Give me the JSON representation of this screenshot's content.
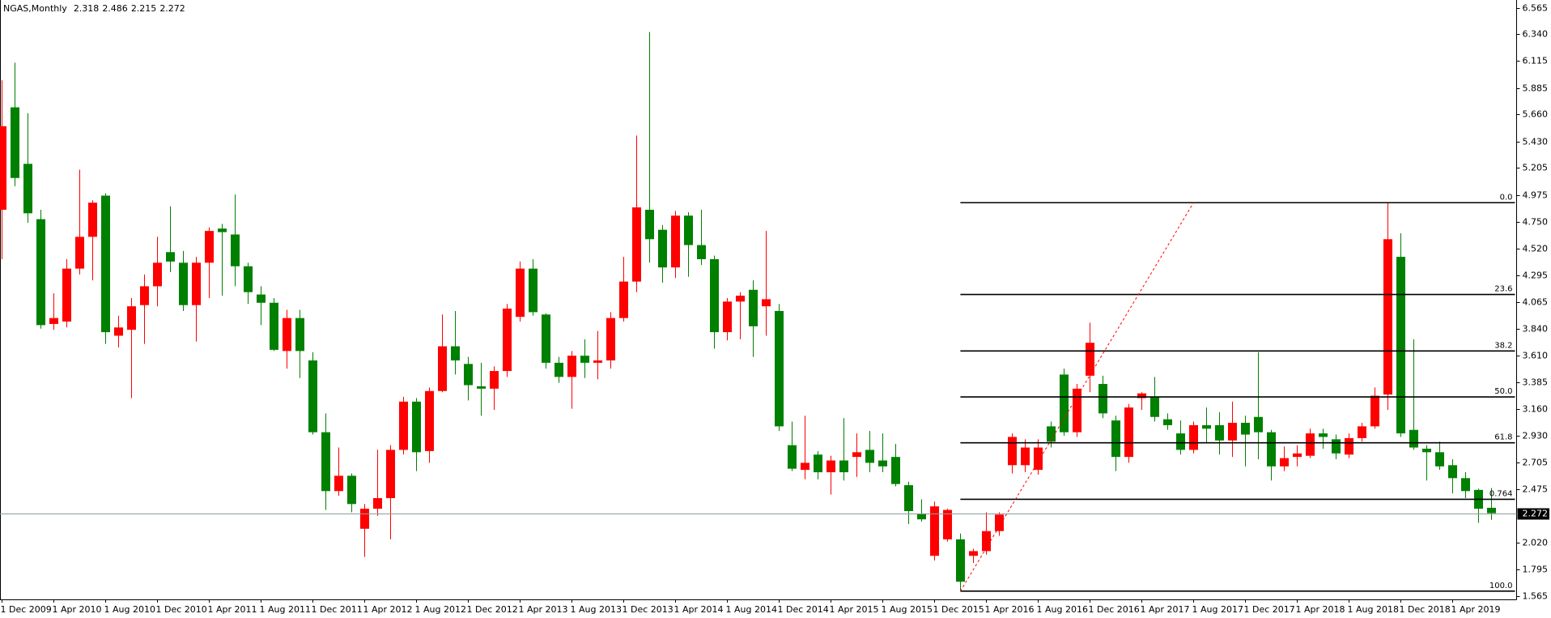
{
  "chart_data": {
    "type": "candlestick",
    "title": "NGAS,Monthly",
    "categories": [
      "1 Dec 2009",
      null,
      null,
      null,
      "1 Apr 2010",
      null,
      null,
      null,
      "1 Aug 2010",
      null,
      null,
      null,
      "1 Dec 2010",
      null,
      null,
      null,
      "1 Apr 2011",
      null,
      null,
      null,
      "1 Aug 2011",
      null,
      null,
      null,
      "1 Dec 2011",
      null,
      null,
      null,
      "1 Apr 2012",
      null,
      null,
      null,
      "1 Aug 2012",
      null,
      null,
      null,
      "1 Dec 2012",
      null,
      null,
      null,
      "1 Apr 2013",
      null,
      null,
      null,
      "1 Aug 2013",
      null,
      null,
      null,
      "1 Dec 2013",
      null,
      null,
      null,
      "1 Apr 2014",
      null,
      null,
      null,
      "1 Aug 2014",
      null,
      null,
      null,
      "1 Dec 2014",
      null,
      null,
      null,
      "1 Apr 2015",
      null,
      null,
      null,
      "1 Aug 2015",
      null,
      null,
      null,
      "1 Dec 2015",
      null,
      null,
      null,
      "1 Apr 2016",
      null,
      null,
      null,
      "1 Aug 2016",
      null,
      null,
      null,
      "1 Dec 2016",
      null,
      null,
      null,
      "1 Apr 2017",
      null,
      null,
      null,
      "1 Aug 2017",
      null,
      null,
      null,
      "1 Dec 2017",
      null,
      null,
      null,
      "1 Apr 2018",
      null,
      null,
      null,
      "1 Aug 2018",
      null,
      null,
      null,
      "1 Dec 2018",
      null,
      null,
      null,
      "1 Apr 2019",
      null,
      null,
      null
    ],
    "open": [
      4.85,
      5.72,
      5.24,
      4.77,
      3.88,
      3.9,
      4.35,
      4.62,
      4.97,
      3.78,
      3.83,
      4.04,
      4.2,
      4.49,
      4.4,
      4.04,
      4.4,
      4.69,
      4.64,
      4.37,
      4.13,
      4.06,
      3.65,
      3.93,
      3.57,
      2.96,
      2.46,
      2.59,
      2.14,
      2.31,
      2.4,
      2.81,
      3.22,
      2.8,
      3.31,
      3.69,
      3.54,
      3.35,
      3.33,
      3.48,
      3.94,
      4.35,
      3.96,
      3.55,
      3.43,
      3.61,
      3.55,
      3.57,
      3.93,
      4.24,
      4.85,
      4.68,
      4.36,
      4.8,
      4.55,
      4.43,
      3.81,
      4.07,
      4.17,
      4.03,
      3.99,
      2.85,
      2.64,
      2.77,
      2.62,
      2.72,
      2.75,
      2.81,
      2.72,
      2.75,
      2.51,
      2.27,
      1.91,
      2.05,
      2.05,
      1.91,
      1.95,
      2.12,
      2.68,
      2.68,
      2.64,
      3.01,
      3.45,
      2.96,
      3.44,
      3.37,
      3.06,
      2.75,
      3.25,
      3.26,
      3.07,
      2.95,
      2.81,
      3.02,
      3.02,
      2.89,
      3.04,
      3.09,
      2.96,
      2.67,
      2.75,
      2.76,
      2.95,
      2.9,
      2.77,
      2.91,
      3.01,
      3.28,
      4.45,
      2.98,
      2.82,
      2.79,
      2.68,
      2.57,
      2.47,
      2.318
    ],
    "high": [
      5.95,
      6.1,
      5.67,
      4.85,
      4.14,
      4.43,
      5.19,
      4.93,
      4.99,
      3.95,
      4.1,
      4.3,
      4.62,
      4.88,
      4.5,
      4.45,
      4.7,
      4.73,
      4.98,
      4.4,
      4.2,
      4.1,
      4.0,
      4.0,
      3.64,
      3.12,
      2.83,
      2.61,
      2.35,
      2.81,
      2.85,
      3.26,
      3.25,
      3.34,
      3.96,
      3.99,
      3.6,
      3.55,
      3.52,
      4.05,
      4.41,
      4.43,
      3.97,
      3.6,
      3.65,
      3.75,
      3.82,
      3.98,
      4.45,
      5.48,
      6.36,
      4.72,
      4.84,
      4.83,
      4.85,
      4.46,
      4.1,
      4.15,
      4.25,
      4.67,
      4.05,
      3.05,
      3.1,
      2.8,
      2.76,
      3.08,
      2.95,
      2.97,
      2.95,
      2.86,
      2.54,
      2.39,
      2.37,
      2.31,
      2.1,
      1.97,
      2.28,
      2.28,
      2.95,
      2.9,
      2.9,
      3.05,
      3.5,
      3.37,
      3.89,
      3.44,
      3.1,
      3.2,
      3.3,
      3.43,
      3.12,
      3.06,
      3.05,
      3.17,
      3.13,
      3.22,
      3.1,
      3.64,
      2.98,
      2.84,
      2.85,
      2.99,
      2.99,
      2.94,
      2.95,
      3.04,
      3.34,
      4.91,
      4.65,
      3.75,
      2.85,
      2.88,
      2.73,
      2.62,
      2.48,
      2.486
    ],
    "low": [
      4.43,
      5.05,
      4.74,
      3.84,
      3.83,
      3.85,
      4.3,
      4.25,
      3.71,
      3.68,
      3.25,
      3.71,
      4.03,
      4.32,
      3.99,
      3.73,
      4.1,
      4.12,
      4.2,
      4.05,
      3.87,
      3.65,
      3.5,
      3.42,
      2.94,
      2.3,
      2.42,
      2.28,
      1.9,
      2.25,
      2.05,
      2.77,
      2.63,
      2.7,
      3.3,
      3.45,
      3.23,
      3.1,
      3.15,
      3.43,
      3.9,
      3.95,
      3.5,
      3.38,
      3.16,
      3.42,
      3.41,
      3.5,
      3.9,
      4.15,
      4.4,
      4.23,
      4.27,
      4.28,
      4.38,
      3.67,
      3.74,
      3.75,
      3.6,
      3.78,
      2.97,
      2.63,
      2.56,
      2.56,
      2.43,
      2.55,
      2.58,
      2.62,
      2.62,
      2.5,
      2.18,
      2.2,
      1.87,
      2.03,
      1.61,
      1.85,
      1.92,
      2.08,
      2.61,
      2.62,
      2.6,
      2.83,
      2.93,
      2.92,
      3.3,
      3.08,
      2.63,
      2.7,
      3.15,
      3.05,
      2.98,
      2.77,
      2.78,
      2.87,
      2.77,
      2.75,
      2.67,
      2.73,
      2.55,
      2.63,
      2.67,
      2.74,
      2.82,
      2.73,
      2.74,
      2.88,
      2.99,
      3.15,
      2.92,
      2.81,
      2.55,
      2.64,
      2.44,
      2.4,
      2.19,
      2.215
    ],
    "close": [
      5.56,
      5.12,
      4.82,
      3.87,
      3.93,
      4.35,
      4.62,
      4.91,
      3.81,
      3.85,
      4.03,
      4.2,
      4.4,
      4.41,
      4.04,
      4.4,
      4.67,
      4.66,
      4.37,
      4.15,
      4.06,
      3.66,
      3.93,
      3.65,
      2.96,
      2.46,
      2.59,
      2.35,
      2.31,
      2.4,
      2.81,
      3.22,
      2.79,
      3.31,
      3.69,
      3.57,
      3.36,
      3.33,
      3.48,
      4.01,
      4.35,
      3.98,
      3.55,
      3.43,
      3.61,
      3.55,
      3.57,
      3.93,
      4.24,
      4.87,
      4.6,
      4.36,
      4.8,
      4.55,
      4.43,
      3.81,
      4.07,
      4.12,
      3.86,
      4.09,
      3.01,
      2.65,
      2.7,
      2.62,
      2.72,
      2.62,
      2.79,
      2.7,
      2.67,
      2.52,
      2.29,
      2.22,
      2.33,
      2.3,
      1.69,
      1.95,
      2.12,
      2.26,
      2.92,
      2.83,
      2.83,
      2.88,
      2.96,
      3.33,
      3.72,
      3.12,
      2.75,
      3.17,
      3.29,
      3.09,
      3.02,
      2.81,
      3.02,
      2.99,
      2.89,
      3.04,
      2.94,
      2.96,
      2.67,
      2.74,
      2.78,
      2.95,
      2.92,
      2.78,
      2.91,
      3.01,
      3.27,
      4.6,
      2.95,
      2.83,
      2.79,
      2.67,
      2.57,
      2.46,
      2.31,
      2.272
    ],
    "up_color": "#ff0000",
    "down_color": "#008000",
    "ylim": [
      1.54,
      6.632
    ],
    "yticks": [
      {
        "value": 6.565,
        "label": "6.565"
      },
      {
        "value": 6.34,
        "label": "6.340"
      },
      {
        "value": 6.115,
        "label": "6.115"
      },
      {
        "value": 5.885,
        "label": "5.885"
      },
      {
        "value": 5.66,
        "label": "5.660"
      },
      {
        "value": 5.43,
        "label": "5.430"
      },
      {
        "value": 5.205,
        "label": "5.205"
      },
      {
        "value": 4.975,
        "label": "4.975"
      },
      {
        "value": 4.75,
        "label": "4.750"
      },
      {
        "value": 4.52,
        "label": "4.520"
      },
      {
        "value": 4.295,
        "label": "4.295"
      },
      {
        "value": 4.065,
        "label": "4.065"
      },
      {
        "value": 3.84,
        "label": "3.840"
      },
      {
        "value": 3.61,
        "label": "3.610"
      },
      {
        "value": 3.385,
        "label": "3.385"
      },
      {
        "value": 3.16,
        "label": "3.160"
      },
      {
        "value": 2.93,
        "label": "2.930"
      },
      {
        "value": 2.705,
        "label": "2.705"
      },
      {
        "value": 2.475,
        "label": "2.475"
      },
      {
        "value": 2.02,
        "label": "2.020"
      },
      {
        "value": 1.795,
        "label": "1.795"
      },
      {
        "value": 1.565,
        "label": "1.565"
      }
    ],
    "fibonacci": {
      "color": "#000000",
      "trend_color": "#ff0000",
      "levels": [
        {
          "name": "0.0",
          "price": 4.91
        },
        {
          "name": "23.6",
          "price": 4.13
        },
        {
          "name": "38.2",
          "price": 3.65
        },
        {
          "name": "50.0",
          "price": 3.26
        },
        {
          "name": "61.8",
          "price": 2.87
        },
        {
          "name": "0.764",
          "price": 2.39
        },
        {
          "name": "100.0",
          "price": 1.61
        }
      ]
    }
  }
}
